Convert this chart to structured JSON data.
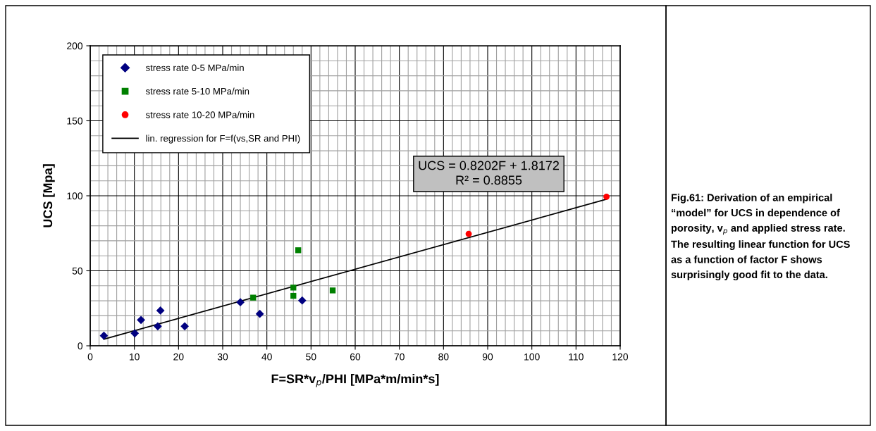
{
  "chart_data": {
    "type": "scatter",
    "xlabel": "F=SR*v$_{p}$/PHI [MPa*m/min*s]",
    "ylabel": "UCS [Mpa]",
    "xlim": [
      0,
      120
    ],
    "xticks": [
      0,
      10,
      20,
      30,
      40,
      50,
      60,
      70,
      80,
      90,
      100,
      110,
      120
    ],
    "ylim": [
      0,
      200
    ],
    "yticks": [
      0,
      50,
      100,
      150,
      200
    ],
    "grid": true,
    "legend": "top left",
    "series": [
      {
        "name": "stress rate 0-5 MPa/min",
        "marker": "diamond",
        "color": "#000080",
        "x": [
          3.1,
          10.1,
          11.5,
          15.3,
          15.9,
          21.4,
          34.0,
          38.4,
          48.0
        ],
        "values": [
          6.7,
          8.3,
          17.2,
          13.0,
          23.5,
          13.0,
          29.0,
          21.3,
          30.2
        ]
      },
      {
        "name": "stress rate 5-10 MPa/min",
        "marker": "square",
        "color": "#008000",
        "x": [
          36.9,
          46.0,
          46.0,
          47.1,
          54.9
        ],
        "values": [
          32.1,
          38.8,
          33.3,
          63.7,
          36.9
        ]
      },
      {
        "name": "stress rate 10-20 MPa/min",
        "marker": "circle",
        "color": "#ff0000",
        "x": [
          85.7,
          116.9
        ],
        "values": [
          74.6,
          99.4
        ]
      },
      {
        "name": "lin. regression for F=f(vs,SR and PHI)",
        "type": "line",
        "marker": "none",
        "line_style": "solid",
        "color": "#000000",
        "x": [
          3.1,
          116.9
        ],
        "values": [
          4.4,
          97.7
        ]
      }
    ],
    "annotations": [
      "UCS = 0.8202F + 1.8172\nR² = 0.8855",
      "Fig.61: Derivation of an empirical “model” for UCS in dependence of porosity, v$_{p}$ and applied stress rate. The resulting linear function for UCS as a function of factor F shows surprisingly good fit to the data."
    ]
  }
}
